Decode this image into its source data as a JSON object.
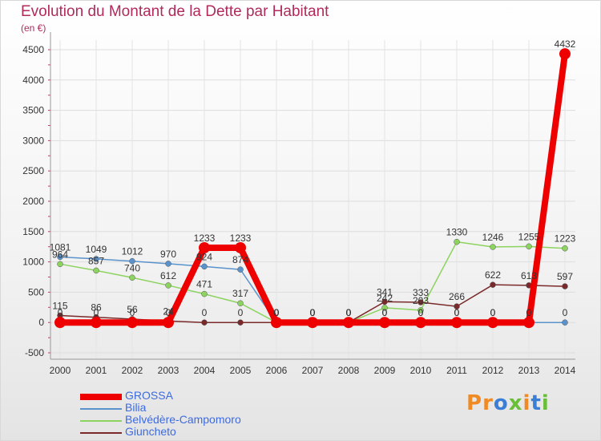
{
  "title": "Evolution du Montant de la Dette par Habitant",
  "subtitle": "(en €)",
  "logo": {
    "text": "Proxiti",
    "colors": [
      "#f08a24",
      "#f08a24",
      "#3a7fd5",
      "#6abf3a",
      "#f08a24",
      "#3a7fd5",
      "#6abf3a"
    ]
  },
  "chart_data": {
    "type": "line",
    "categories": [
      "2000",
      "2001",
      "2002",
      "2003",
      "2004",
      "2005",
      "2006",
      "2007",
      "2008",
      "2009",
      "2010",
      "2011",
      "2012",
      "2013",
      "2014"
    ],
    "ylim": [
      -500,
      4500
    ],
    "yticks": [
      -500,
      0,
      500,
      1000,
      1500,
      2000,
      2500,
      3000,
      3500,
      4000,
      4500
    ],
    "grid": true,
    "legend_position": "bottom-left",
    "series": [
      {
        "name": "GROSSA",
        "color": "#ee0000",
        "values": [
          0,
          0,
          0,
          0,
          1233,
          1233,
          0,
          0,
          0,
          0,
          0,
          0,
          0,
          0,
          4432
        ],
        "labels": [
          "0",
          "0",
          "0",
          "0",
          "1233",
          "1233",
          "0",
          "0",
          "0",
          "0",
          "0",
          "0",
          "0",
          "0",
          "4432"
        ]
      },
      {
        "name": "Bilia",
        "color": "#5a93cc",
        "values": [
          1081,
          1049,
          1012,
          970,
          924,
          874,
          0,
          0,
          0,
          0,
          0,
          0,
          0,
          0,
          0
        ],
        "labels": [
          "1081",
          "1049",
          "1012",
          "970",
          "924",
          "874",
          "0",
          "0",
          "0",
          "0",
          "0",
          "0",
          "0",
          "0",
          "0"
        ]
      },
      {
        "name": "Belvédère-Campomoro",
        "color": "#8dd35f",
        "values": [
          964,
          857,
          740,
          612,
          471,
          317,
          0,
          0,
          0,
          242,
          203,
          1330,
          1246,
          1255,
          1223
        ],
        "labels": [
          "964",
          "857",
          "740",
          "612",
          "471",
          "317",
          "0",
          "0",
          "0",
          "242",
          "203",
          "1330",
          "1246",
          "1255",
          "1223"
        ]
      },
      {
        "name": "Giuncheto",
        "color": "#7a2a2a",
        "values": [
          115,
          86,
          56,
          24,
          0,
          0,
          0,
          0,
          0,
          341,
          333,
          266,
          622,
          613,
          597
        ],
        "labels": [
          "115",
          "86",
          "56",
          "24",
          "0",
          "0",
          "0",
          "0",
          "0",
          "341",
          "333",
          "266",
          "622",
          "613",
          "597"
        ]
      }
    ]
  }
}
